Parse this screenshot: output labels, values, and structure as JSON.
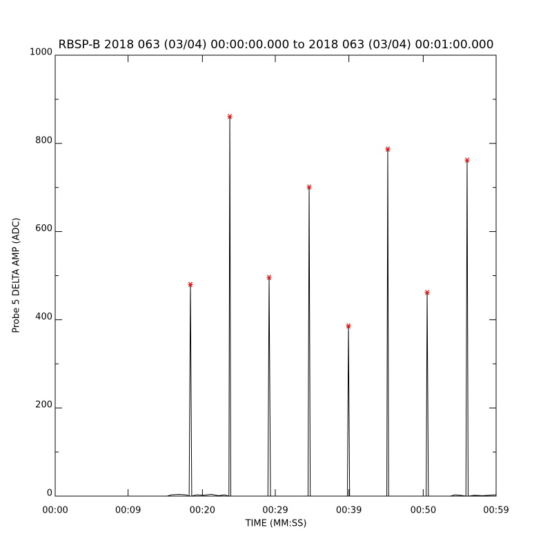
{
  "chart_data": {
    "type": "line",
    "title": "RBSP-B 2018 063 (03/04) 00:00:00.000 to 2018 063 (03/04) 00:01:00.000",
    "x_label": "TIME (MM:SS)",
    "y_label": "Probe 5 DELTA AMP (ADC)",
    "xlim": [
      0,
      59.9
    ],
    "ylim": [
      0,
      1000
    ],
    "xticks": [
      {
        "value": 0,
        "label": "00:00"
      },
      {
        "value": 9.9,
        "label": "00:09"
      },
      {
        "value": 20,
        "label": "00:20"
      },
      {
        "value": 29.9,
        "label": "00:29"
      },
      {
        "value": 39.9,
        "label": "00:39"
      },
      {
        "value": 50,
        "label": "00:50"
      },
      {
        "value": 59.9,
        "label": "00:59"
      }
    ],
    "yticks": [
      0,
      200,
      400,
      600,
      800,
      1000
    ],
    "yminorticks": [
      100,
      300,
      500,
      700,
      900
    ],
    "grid": false,
    "line": {
      "color": "#000000",
      "x": [
        0,
        15.2,
        15.8,
        16.8,
        17.8,
        18.2,
        18.37,
        18.55,
        19.2,
        20.2,
        21.2,
        22.2,
        23.0,
        23.6,
        23.72,
        23.85,
        28.9,
        29.06,
        29.25,
        34.35,
        34.5,
        34.65,
        39.7,
        39.84,
        40.0,
        45.05,
        45.18,
        45.3,
        50.4,
        50.53,
        50.7,
        53.7,
        54.3,
        55.0,
        55.8,
        55.96,
        56.1,
        57.0,
        58.0,
        59.9
      ],
      "values": [
        0,
        0,
        3,
        4,
        3,
        0,
        480,
        0,
        3,
        2,
        4,
        1,
        3,
        0,
        861,
        0,
        0,
        496,
        0,
        0,
        701,
        0,
        0,
        386,
        0,
        0,
        787,
        0,
        0,
        462,
        0,
        0,
        3,
        2,
        0,
        762,
        0,
        2,
        1,
        3
      ]
    },
    "peaks": {
      "color": "#ff0000",
      "x": [
        18.37,
        23.72,
        29.06,
        34.5,
        39.84,
        45.18,
        50.53,
        55.96
      ],
      "values": [
        480,
        861,
        496,
        701,
        386,
        787,
        462,
        762
      ]
    }
  }
}
